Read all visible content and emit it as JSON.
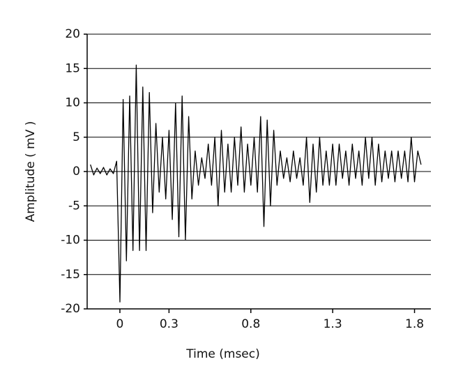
{
  "chart_data": {
    "type": "line",
    "xlabel": "Time (msec)",
    "ylabel": "Amplitude ( mV )",
    "x": [
      -0.18,
      -0.16,
      -0.14,
      -0.12,
      -0.1,
      -0.08,
      -0.06,
      -0.04,
      -0.02,
      0,
      0.02,
      0.04,
      0.06,
      0.08,
      0.1,
      0.12,
      0.14,
      0.16,
      0.18,
      0.2,
      0.22,
      0.24,
      0.26,
      0.28,
      0.3,
      0.32,
      0.34,
      0.36,
      0.38,
      0.4,
      0.42,
      0.44,
      0.46,
      0.48,
      0.5,
      0.52,
      0.54,
      0.56,
      0.58,
      0.6,
      0.62,
      0.64,
      0.66,
      0.68,
      0.7,
      0.72,
      0.74,
      0.76,
      0.78,
      0.8,
      0.82,
      0.84,
      0.86,
      0.88,
      0.9,
      0.92,
      0.94,
      0.96,
      0.98,
      1,
      1.02,
      1.04,
      1.06,
      1.08,
      1.1,
      1.12,
      1.14,
      1.16,
      1.18,
      1.2,
      1.22,
      1.24,
      1.26,
      1.28,
      1.3,
      1.32,
      1.34,
      1.36,
      1.38,
      1.4,
      1.42,
      1.44,
      1.46,
      1.48,
      1.5,
      1.52,
      1.54,
      1.56,
      1.58,
      1.6,
      1.62,
      1.64,
      1.66,
      1.68,
      1.7,
      1.72,
      1.74,
      1.76,
      1.78,
      1.8,
      1.82,
      1.84
    ],
    "series": [
      {
        "color": "#000000",
        "values": [
          1,
          -0.5,
          0.5,
          -0.3,
          0.6,
          -0.5,
          0.4,
          -0.3,
          1.5,
          -19,
          10.5,
          -13,
          11,
          -11.5,
          15.5,
          -11.5,
          12.3,
          -11.5,
          11.5,
          -6,
          7,
          -3,
          5,
          -4,
          6,
          -7,
          10,
          -9.5,
          11,
          -10,
          8,
          -4,
          3,
          -2,
          2,
          -1,
          4,
          -2,
          5,
          -5,
          6,
          -3,
          4,
          -3,
          5,
          -2,
          6.5,
          -3,
          4,
          -2,
          5,
          -3,
          8,
          -8,
          7.5,
          -5,
          6,
          -2,
          3,
          -1,
          2,
          -1.5,
          3,
          -1,
          2,
          -2,
          5,
          -4.5,
          4,
          -3,
          5,
          -2,
          3,
          -2,
          4,
          -2,
          4,
          -1,
          3,
          -2,
          4,
          -1,
          3,
          -2,
          5,
          -1,
          5,
          -2,
          4,
          -1.5,
          3,
          -1,
          3,
          -1.5,
          3,
          -1,
          3,
          -1.5,
          5,
          -1.5,
          3,
          1
        ]
      }
    ],
    "xlim": [
      -0.2,
      1.9
    ],
    "xticks": [
      0,
      0.3,
      0.8,
      1.3,
      1.8
    ],
    "ylim": [
      -20,
      20
    ],
    "yticks": [
      -20,
      -15,
      -10,
      -5,
      0,
      5,
      10,
      15,
      20
    ],
    "grid": true
  }
}
